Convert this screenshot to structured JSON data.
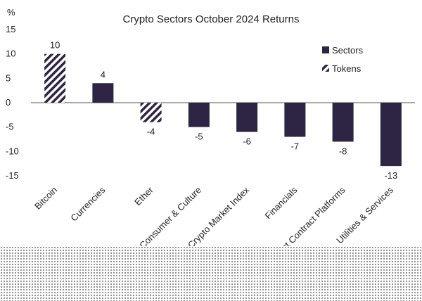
{
  "chart_data": {
    "type": "bar",
    "title": "Crypto Sectors October 2024 Returns",
    "ylabel": "%",
    "ylim": [
      -15,
      15
    ],
    "yticks": [
      15,
      10,
      5,
      0,
      -5,
      -10,
      -15
    ],
    "grid": false,
    "legend_placement": "right",
    "categories": [
      "Bitcoin",
      "Currencies",
      "Ether",
      "Consumer & Culture",
      "Crypto Market Index",
      "Financials",
      "Smart Contract Platforms",
      "Utilities & Services"
    ],
    "values": [
      10,
      4,
      -4,
      -5,
      -6,
      -7,
      -8,
      -13
    ],
    "labels": [
      "10",
      "4",
      "-4",
      "-5",
      "-6",
      "-7",
      "-8",
      "-13"
    ],
    "kinds": [
      "token",
      "sector",
      "token",
      "sector",
      "sector",
      "sector",
      "sector",
      "sector"
    ],
    "series": [
      {
        "name": "Sectors",
        "style": "solid"
      },
      {
        "name": "Tokens",
        "style": "hatched"
      }
    ],
    "colors": {
      "bar": "#2e2444",
      "text": "#1f1f1f",
      "axis": "#555555"
    }
  }
}
